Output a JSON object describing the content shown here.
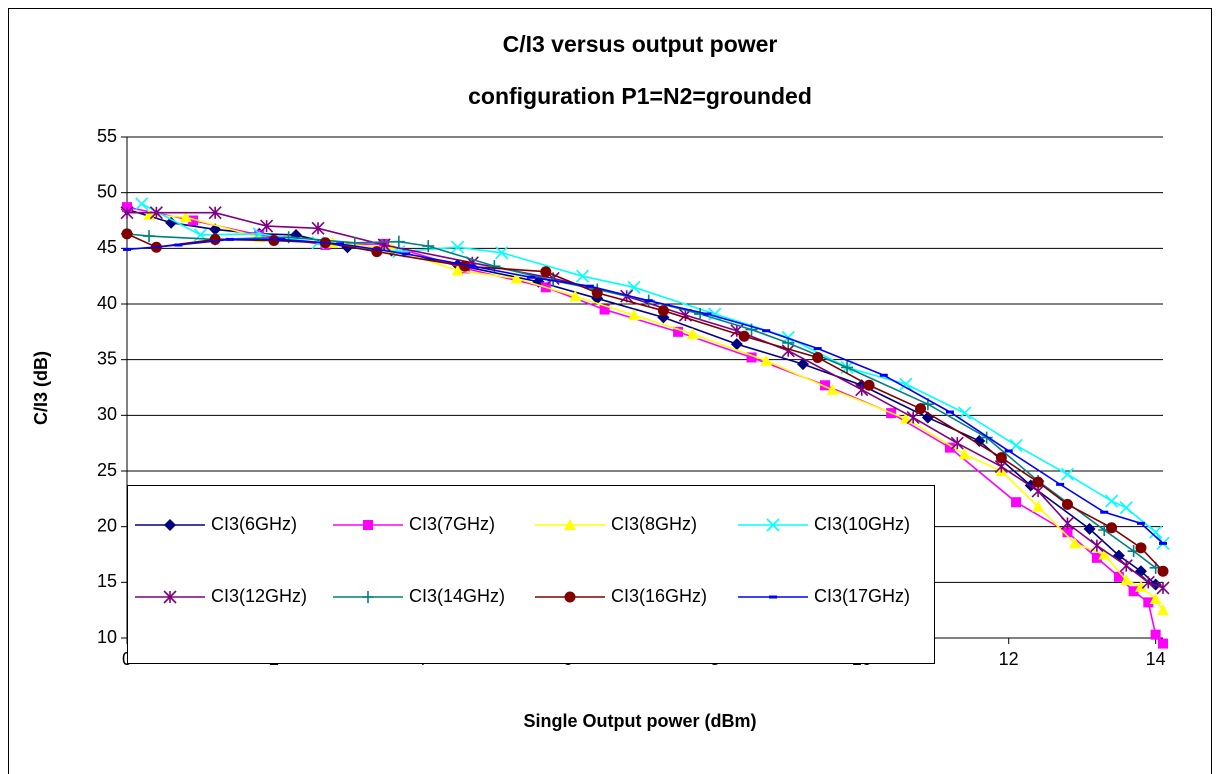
{
  "chart_data": {
    "type": "line",
    "title": [
      "C/I3 versus output power",
      "configuration P1=N2=grounded"
    ],
    "x_label": "Single Output power (dBm)",
    "y_label": "C/I3 (dB)",
    "xlim": [
      0,
      14.1
    ],
    "xticks": [
      0,
      2,
      4,
      6,
      8,
      10,
      12,
      14
    ],
    "ylim": [
      10,
      55
    ],
    "yticks": [
      10,
      15,
      20,
      25,
      30,
      35,
      40,
      45,
      50,
      55
    ],
    "grid": true,
    "series": [
      {
        "name": "CI3(6GHz)",
        "color": "#000080",
        "marker": "diamond",
        "x": [
          0,
          0.6,
          1.2,
          1.8,
          2.3,
          3.0,
          3.6,
          4.5,
          5.6,
          6.4,
          7.3,
          8.3,
          9.2,
          10.0,
          10.9,
          11.6,
          12.3,
          13.1,
          13.5,
          13.8,
          14.0
        ],
        "values": [
          48.5,
          47.3,
          46.7,
          46.3,
          46.2,
          45.1,
          44.8,
          43.5,
          42.0,
          40.5,
          38.8,
          36.4,
          34.6,
          32.7,
          29.8,
          27.7,
          23.7,
          19.8,
          17.4,
          16.0,
          14.8
        ]
      },
      {
        "name": "CI3(7GHz)",
        "color": "#ff00ff",
        "marker": "square",
        "x": [
          0,
          0.9,
          1.8,
          2.7,
          3.5,
          4.6,
          5.7,
          6.5,
          7.5,
          8.5,
          9.5,
          10.4,
          11.2,
          12.1,
          12.8,
          13.2,
          13.5,
          13.7,
          13.9,
          14.0,
          14.1
        ],
        "values": [
          48.7,
          47.5,
          46.2,
          45.3,
          45.4,
          43.2,
          41.5,
          39.5,
          37.5,
          35.2,
          32.7,
          30.2,
          27.1,
          22.2,
          19.5,
          17.2,
          15.5,
          14.2,
          13.2,
          10.3,
          9.5
        ]
      },
      {
        "name": "CI3(8GHz)",
        "color": "#ffff00",
        "marker": "triangle",
        "x": [
          0.3,
          0.8,
          1.8,
          2.8,
          3.6,
          4.5,
          5.3,
          6.1,
          6.9,
          7.7,
          8.7,
          9.6,
          10.6,
          11.4,
          11.9,
          12.4,
          12.9,
          13.3,
          13.6,
          13.8,
          14.0,
          14.1
        ],
        "values": [
          48,
          47.8,
          46,
          45.5,
          45,
          43,
          42.3,
          40.7,
          39,
          37.3,
          34.9,
          32.3,
          29.7,
          26.5,
          25,
          21.8,
          18.5,
          17.5,
          15.2,
          14.6,
          13.5,
          12.5
        ]
      },
      {
        "name": "CI3(10GHz)",
        "color": "#00ffff",
        "marker": "x",
        "x": [
          0.2,
          1.0,
          1.8,
          2.6,
          3.7,
          4.5,
          5.1,
          6.2,
          6.9,
          8.0,
          9.0,
          9.8,
          10.6,
          11.4,
          12.1,
          12.8,
          13.4,
          13.6,
          14.0,
          14.1
        ],
        "values": [
          49,
          46.2,
          46.3,
          45.5,
          44.7,
          45.1,
          44.6,
          42.5,
          41.5,
          39.1,
          37,
          34.3,
          32.8,
          30.2,
          27.3,
          24.7,
          22.3,
          21.7,
          19.5,
          18.5
        ]
      },
      {
        "name": "CI3(12GHz)",
        "color": "#800080",
        "marker": "star",
        "x": [
          0,
          0.4,
          1.2,
          1.9,
          2.6,
          3.5,
          4.7,
          5.8,
          6.8,
          7.6,
          8.3,
          9.0,
          10.0,
          10.7,
          11.3,
          11.9,
          12.4,
          12.8,
          13.2,
          13.6,
          13.9,
          14.1
        ],
        "values": [
          48.2,
          48.2,
          48.2,
          47,
          46.8,
          45.3,
          43.7,
          42.3,
          40.7,
          39,
          37.6,
          35.8,
          32.3,
          29.8,
          27.5,
          25.4,
          23.2,
          20.3,
          18.3,
          16.5,
          15,
          14.5
        ]
      },
      {
        "name": "CI3(14GHz)",
        "color": "#008080",
        "marker": "plus",
        "x": [
          0,
          0.3,
          1.2,
          2.2,
          3.1,
          3.7,
          4.1,
          5.0,
          5.8,
          6.4,
          7.1,
          7.8,
          8.5,
          9.0,
          9.8,
          10.9,
          11.7,
          12.4,
          13.3,
          13.7,
          14.0
        ],
        "values": [
          46.3,
          46.1,
          45.8,
          46,
          45.5,
          45.6,
          45.2,
          43.4,
          42.1,
          41.3,
          40.3,
          39.1,
          37.7,
          36.5,
          34.3,
          31,
          28,
          24.1,
          19.7,
          17.8,
          16.3
        ]
      },
      {
        "name": "CI3(16GHz)",
        "color": "#800000",
        "marker": "circle",
        "x": [
          0,
          0.4,
          1.2,
          2.0,
          2.7,
          3.4,
          4.6,
          5.7,
          6.4,
          7.3,
          8.4,
          9.4,
          10.1,
          10.8,
          11.9,
          12.4,
          12.8,
          13.4,
          13.8,
          14.1
        ],
        "values": [
          46.3,
          45.1,
          45.8,
          45.7,
          45.5,
          44.7,
          43.4,
          42.9,
          41,
          39.4,
          37.1,
          35.2,
          32.7,
          30.6,
          26.2,
          24,
          22,
          19.9,
          18.1,
          16
        ]
      },
      {
        "name": "CI3(17GHz)",
        "color": "#0000ff",
        "marker": "dash",
        "x": [
          0,
          0.7,
          1.4,
          2.1,
          2.9,
          3.8,
          4.7,
          5.5,
          6.3,
          7.1,
          7.9,
          8.7,
          9.4,
          10.3,
          11.2,
          12.0,
          12.7,
          13.3,
          13.8,
          14.1
        ],
        "values": [
          44.9,
          45.3,
          45.8,
          45.8,
          45.4,
          44.5,
          43.4,
          42.4,
          41.6,
          40.3,
          39.1,
          37.6,
          36,
          33.6,
          30.3,
          26.8,
          23.8,
          21.3,
          20.3,
          18.5
        ]
      }
    ]
  }
}
